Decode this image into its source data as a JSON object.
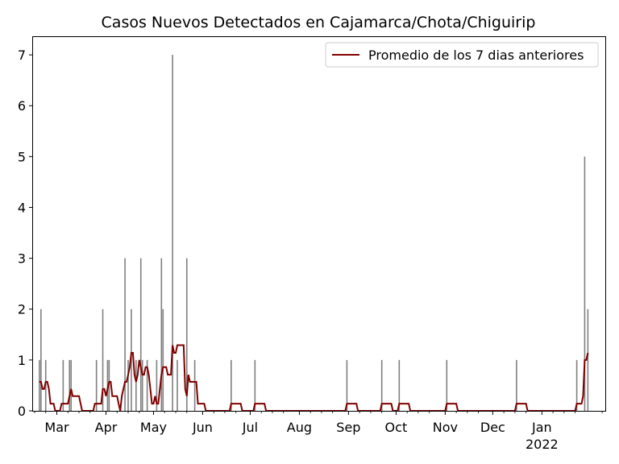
{
  "chart_data": {
    "type": "bar",
    "title": "Casos Nuevos Detectados en Cajamarca/Chota/Chiguirip",
    "xlabel": "",
    "ylabel": "",
    "x_range": [
      "2021-02-14",
      "2022-02-10"
    ],
    "ylim": [
      0,
      7.35
    ],
    "y_ticks": [
      0,
      1,
      2,
      3,
      4,
      5,
      6,
      7
    ],
    "x_ticks": [
      {
        "date": "2021-03-01",
        "label": "Mar"
      },
      {
        "date": "2021-04-01",
        "label": "Apr"
      },
      {
        "date": "2021-05-01",
        "label": "May"
      },
      {
        "date": "2021-06-01",
        "label": "Jun"
      },
      {
        "date": "2021-07-01",
        "label": "Jul"
      },
      {
        "date": "2021-08-01",
        "label": "Aug"
      },
      {
        "date": "2021-09-01",
        "label": "Sep"
      },
      {
        "date": "2021-10-01",
        "label": "Oct"
      },
      {
        "date": "2021-11-01",
        "label": "Nov"
      },
      {
        "date": "2021-12-01",
        "label": "Dec"
      },
      {
        "date": "2022-01-01",
        "label": "Jan",
        "sublabel": "2022"
      }
    ],
    "grid": false,
    "legend_position": "top-right",
    "series": [
      {
        "name": "",
        "type": "bar",
        "color": "#808080",
        "points": [
          [
            "2021-02-18",
            1
          ],
          [
            "2021-02-19",
            2
          ],
          [
            "2021-02-22",
            1
          ],
          [
            "2021-03-05",
            1
          ],
          [
            "2021-03-09",
            1
          ],
          [
            "2021-03-10",
            1
          ],
          [
            "2021-03-26",
            1
          ],
          [
            "2021-03-30",
            2
          ],
          [
            "2021-04-02",
            1
          ],
          [
            "2021-04-03",
            1
          ],
          [
            "2021-04-13",
            3
          ],
          [
            "2021-04-15",
            1
          ],
          [
            "2021-04-17",
            2
          ],
          [
            "2021-04-20",
            1
          ],
          [
            "2021-04-23",
            3
          ],
          [
            "2021-04-24",
            1
          ],
          [
            "2021-04-27",
            1
          ],
          [
            "2021-05-03",
            1
          ],
          [
            "2021-05-06",
            3
          ],
          [
            "2021-05-07",
            2
          ],
          [
            "2021-05-13",
            7
          ],
          [
            "2021-05-16",
            1
          ],
          [
            "2021-05-22",
            3
          ],
          [
            "2021-05-27",
            1
          ],
          [
            "2021-06-19",
            1
          ],
          [
            "2021-07-04",
            1
          ],
          [
            "2021-08-31",
            1
          ],
          [
            "2021-09-22",
            1
          ],
          [
            "2021-10-03",
            1
          ],
          [
            "2021-11-02",
            1
          ],
          [
            "2021-12-16",
            1
          ],
          [
            "2022-01-23",
            1
          ],
          [
            "2022-01-28",
            5
          ],
          [
            "2022-01-30",
            2
          ]
        ]
      },
      {
        "name": "Promedio de los 7 dias anteriores",
        "type": "line",
        "color": "#800000",
        "points": [
          [
            "2021-02-18",
            0.57
          ],
          [
            "2021-02-19",
            0.57
          ],
          [
            "2021-02-20",
            0.43
          ],
          [
            "2021-02-21",
            0.43
          ],
          [
            "2021-02-22",
            0.57
          ],
          [
            "2021-02-23",
            0.57
          ],
          [
            "2021-02-24",
            0.43
          ],
          [
            "2021-02-25",
            0.14
          ],
          [
            "2021-02-26",
            0.14
          ],
          [
            "2021-02-27",
            0.14
          ],
          [
            "2021-02-28",
            0.0
          ],
          [
            "2021-03-01",
            0.0
          ],
          [
            "2021-03-02",
            0.0
          ],
          [
            "2021-03-03",
            0.0
          ],
          [
            "2021-03-04",
            0.14
          ],
          [
            "2021-03-05",
            0.14
          ],
          [
            "2021-03-06",
            0.14
          ],
          [
            "2021-03-07",
            0.14
          ],
          [
            "2021-03-08",
            0.14
          ],
          [
            "2021-03-09",
            0.29
          ],
          [
            "2021-03-10",
            0.43
          ],
          [
            "2021-03-11",
            0.29
          ],
          [
            "2021-03-12",
            0.29
          ],
          [
            "2021-03-13",
            0.29
          ],
          [
            "2021-03-14",
            0.29
          ],
          [
            "2021-03-15",
            0.29
          ],
          [
            "2021-03-16",
            0.14
          ],
          [
            "2021-03-17",
            0.0
          ],
          [
            "2021-03-24",
            0.0
          ],
          [
            "2021-03-25",
            0.14
          ],
          [
            "2021-03-26",
            0.14
          ],
          [
            "2021-03-27",
            0.14
          ],
          [
            "2021-03-28",
            0.14
          ],
          [
            "2021-03-29",
            0.14
          ],
          [
            "2021-03-30",
            0.43
          ],
          [
            "2021-03-31",
            0.43
          ],
          [
            "2021-04-01",
            0.29
          ],
          [
            "2021-04-02",
            0.43
          ],
          [
            "2021-04-03",
            0.57
          ],
          [
            "2021-04-04",
            0.57
          ],
          [
            "2021-04-05",
            0.29
          ],
          [
            "2021-04-06",
            0.29
          ],
          [
            "2021-04-07",
            0.29
          ],
          [
            "2021-04-08",
            0.29
          ],
          [
            "2021-04-09",
            0.14
          ],
          [
            "2021-04-10",
            0.0
          ],
          [
            "2021-04-11",
            0.29
          ],
          [
            "2021-04-12",
            0.43
          ],
          [
            "2021-04-13",
            0.57
          ],
          [
            "2021-04-14",
            0.57
          ],
          [
            "2021-04-15",
            0.71
          ],
          [
            "2021-04-16",
            0.86
          ],
          [
            "2021-04-17",
            1.14
          ],
          [
            "2021-04-18",
            1.14
          ],
          [
            "2021-04-19",
            0.71
          ],
          [
            "2021-04-20",
            0.57
          ],
          [
            "2021-04-21",
            0.71
          ],
          [
            "2021-04-22",
            1.0
          ],
          [
            "2021-04-23",
            0.86
          ],
          [
            "2021-04-24",
            0.71
          ],
          [
            "2021-04-25",
            0.71
          ],
          [
            "2021-04-26",
            0.86
          ],
          [
            "2021-04-27",
            0.86
          ],
          [
            "2021-04-28",
            0.71
          ],
          [
            "2021-04-29",
            0.43
          ],
          [
            "2021-04-30",
            0.14
          ],
          [
            "2021-05-01",
            0.14
          ],
          [
            "2021-05-02",
            0.29
          ],
          [
            "2021-05-03",
            0.14
          ],
          [
            "2021-05-04",
            0.14
          ],
          [
            "2021-05-05",
            0.43
          ],
          [
            "2021-05-06",
            0.71
          ],
          [
            "2021-05-07",
            0.86
          ],
          [
            "2021-05-08",
            0.86
          ],
          [
            "2021-05-09",
            0.86
          ],
          [
            "2021-05-10",
            0.71
          ],
          [
            "2021-05-11",
            0.71
          ],
          [
            "2021-05-12",
            0.71
          ],
          [
            "2021-05-13",
            1.29
          ],
          [
            "2021-05-14",
            1.14
          ],
          [
            "2021-05-15",
            1.14
          ],
          [
            "2021-05-16",
            1.29
          ],
          [
            "2021-05-17",
            1.29
          ],
          [
            "2021-05-18",
            1.29
          ],
          [
            "2021-05-19",
            1.29
          ],
          [
            "2021-05-20",
            1.29
          ],
          [
            "2021-05-21",
            0.43
          ],
          [
            "2021-05-22",
            0.29
          ],
          [
            "2021-05-23",
            0.71
          ],
          [
            "2021-05-24",
            0.57
          ],
          [
            "2021-05-25",
            0.57
          ],
          [
            "2021-05-26",
            0.57
          ],
          [
            "2021-05-27",
            0.57
          ],
          [
            "2021-05-28",
            0.57
          ],
          [
            "2021-05-29",
            0.14
          ],
          [
            "2021-05-30",
            0.14
          ],
          [
            "2021-05-31",
            0.14
          ],
          [
            "2021-06-01",
            0.14
          ],
          [
            "2021-06-02",
            0.14
          ],
          [
            "2021-06-03",
            0.0
          ],
          [
            "2021-06-18",
            0.0
          ],
          [
            "2021-06-19",
            0.14
          ],
          [
            "2021-06-25",
            0.14
          ],
          [
            "2021-06-26",
            0.0
          ],
          [
            "2021-07-03",
            0.0
          ],
          [
            "2021-07-04",
            0.14
          ],
          [
            "2021-07-10",
            0.14
          ],
          [
            "2021-07-11",
            0.0
          ],
          [
            "2021-08-30",
            0.0
          ],
          [
            "2021-08-31",
            0.14
          ],
          [
            "2021-09-06",
            0.14
          ],
          [
            "2021-09-07",
            0.0
          ],
          [
            "2021-09-21",
            0.0
          ],
          [
            "2021-09-22",
            0.14
          ],
          [
            "2021-09-28",
            0.14
          ],
          [
            "2021-09-29",
            0.0
          ],
          [
            "2021-10-02",
            0.0
          ],
          [
            "2021-10-03",
            0.14
          ],
          [
            "2021-10-09",
            0.14
          ],
          [
            "2021-10-10",
            0.0
          ],
          [
            "2021-11-01",
            0.0
          ],
          [
            "2021-11-02",
            0.14
          ],
          [
            "2021-11-08",
            0.14
          ],
          [
            "2021-11-09",
            0.0
          ],
          [
            "2021-12-15",
            0.0
          ],
          [
            "2021-12-16",
            0.14
          ],
          [
            "2021-12-22",
            0.14
          ],
          [
            "2021-12-23",
            0.0
          ],
          [
            "2022-01-22",
            0.0
          ],
          [
            "2022-01-23",
            0.14
          ],
          [
            "2022-01-26",
            0.14
          ],
          [
            "2022-01-27",
            0.29
          ],
          [
            "2022-01-28",
            1.0
          ],
          [
            "2022-01-29",
            1.0
          ],
          [
            "2022-01-30",
            1.14
          ]
        ]
      }
    ]
  }
}
